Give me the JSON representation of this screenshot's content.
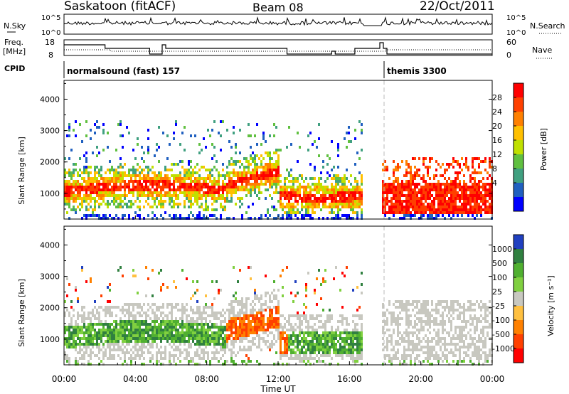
{
  "header": {
    "station": "Saskatoon (fitACF)",
    "beam": "Beam 08",
    "date": "22/Oct/2011"
  },
  "top_panels": {
    "nsky_label": "N.Sky",
    "nsky_ticks": [
      "10^5",
      "10^0"
    ],
    "nsearch_label": "N.Search",
    "nsearch_ticks": [
      "10^5",
      "10^0"
    ],
    "freq_label": "Freq.",
    "freq_unit": "[MHz]",
    "freq_ticks": [
      "18",
      "8"
    ],
    "nave_label": "Nave",
    "nave_ticks": [
      "60",
      "0"
    ],
    "cpid_label": "CPID",
    "cpid_segments": [
      {
        "label": "normalsound (fast) 157",
        "start_hour": 0,
        "end_hour": 18
      },
      {
        "label": "themis 3300",
        "start_hour": 18,
        "end_hour": 24
      }
    ]
  },
  "chart_data": [
    {
      "type": "heatmap",
      "title": "",
      "ylabel": "Slant Range [km]",
      "xlabel": "",
      "y_ticks": [
        1000,
        2000,
        3000,
        4000
      ],
      "ylim": [
        180,
        4600
      ],
      "xlim_hours": [
        0,
        24
      ],
      "colorbar": {
        "label": "Power [dB]",
        "ticks": [
          "28",
          "24",
          "20",
          "16",
          "12",
          "8",
          "4"
        ],
        "colors": [
          "#ff0000",
          "#ff4000",
          "#ff8000",
          "#ffc000",
          "#c0e000",
          "#60c040",
          "#40a080",
          "#2060c0",
          "#0000ff"
        ]
      },
      "data_gap_hours": [
        16.7,
        17.8
      ]
    },
    {
      "type": "heatmap",
      "title": "",
      "ylabel": "Slant Range [km]",
      "xlabel": "Time UT",
      "y_ticks": [
        1000,
        2000,
        3000,
        4000
      ],
      "ylim": [
        180,
        4600
      ],
      "xlim_hours": [
        0,
        24
      ],
      "x_ticks": [
        "00:00",
        "04:00",
        "08:00",
        "12:00",
        "16:00",
        "20:00",
        "00:00"
      ],
      "colorbar": {
        "label": "Velocity [m s⁻¹]",
        "ticks": [
          "1000",
          "500",
          "100",
          "25",
          "-25",
          "-100",
          "-500",
          "-1000"
        ],
        "colors": [
          "#2040c0",
          "#308040",
          "#50b030",
          "#80d040",
          "#c8c8c0",
          "#ffc040",
          "#ff8000",
          "#ff4000",
          "#ff0000"
        ]
      },
      "data_gap_hours": [
        16.7,
        17.8
      ]
    }
  ]
}
